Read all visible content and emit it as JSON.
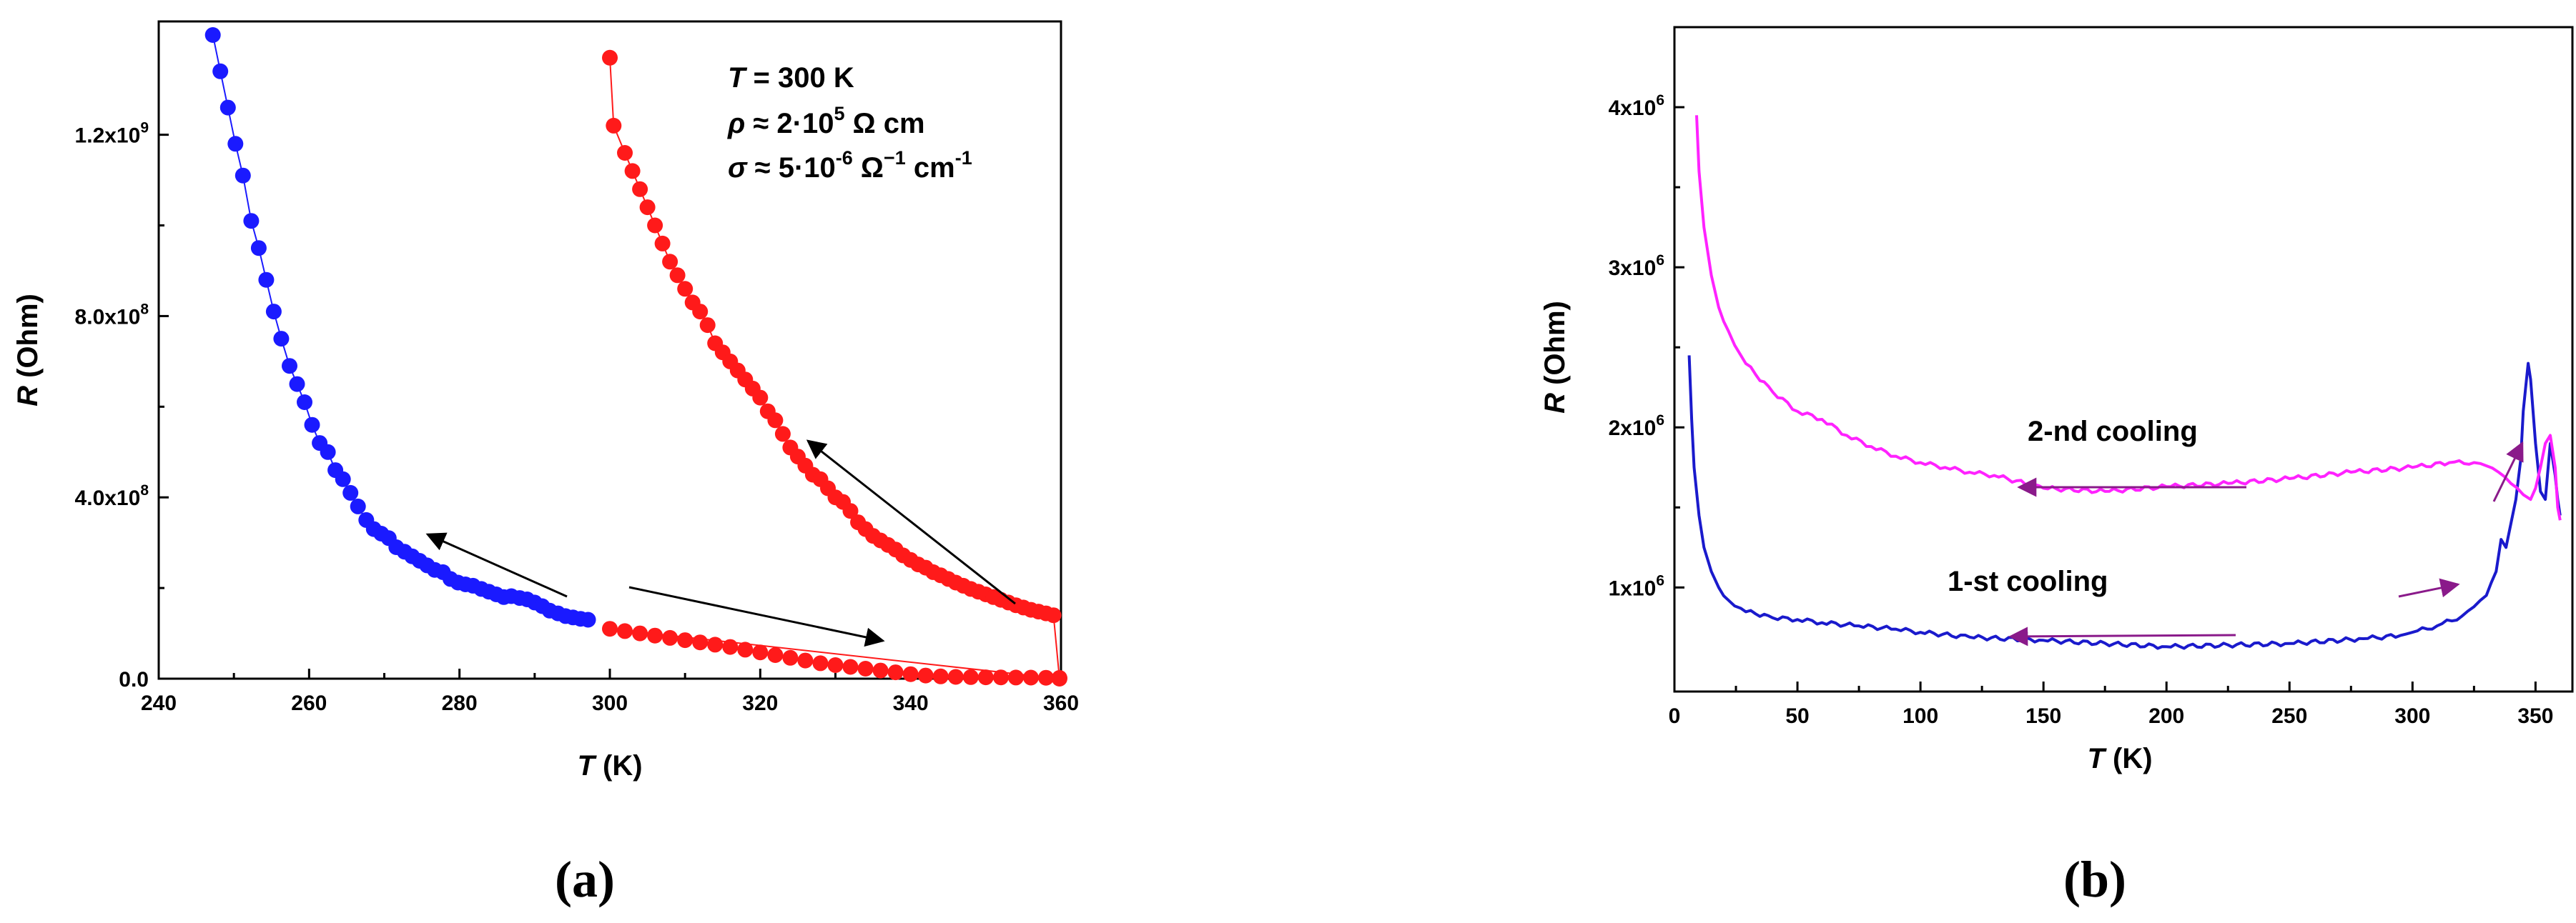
{
  "chart_data": [
    {
      "type": "scatter",
      "panel_label": "(a)",
      "xlabel": {
        "var": "T",
        "unit": " (K)"
      },
      "ylabel": {
        "var": "R",
        "unit": " (Ohm)"
      },
      "xlim": [
        240,
        360
      ],
      "ylim": [
        0,
        1450000000
      ],
      "xticks": [
        {
          "value": 240,
          "label": "240"
        },
        {
          "value": 260,
          "label": "260"
        },
        {
          "value": 280,
          "label": "280"
        },
        {
          "value": 300,
          "label": "300"
        },
        {
          "value": 320,
          "label": "320"
        },
        {
          "value": 340,
          "label": "340"
        },
        {
          "value": 360,
          "label": "360"
        }
      ],
      "yticks": [
        {
          "value": 0,
          "base": "0.0",
          "exp": ""
        },
        {
          "value": 400000000,
          "base": "4.0x10",
          "exp": "8"
        },
        {
          "value": 800000000,
          "base": "8.0x10",
          "exp": "8"
        },
        {
          "value": 1200000000,
          "base": "1.2x10",
          "exp": "9"
        }
      ],
      "annotation": {
        "line1": {
          "var": "T",
          "text": " = 300 K"
        },
        "line2": {
          "var": "ρ",
          "pre": " ≈ 2·10",
          "exp": "5",
          "post": "  Ω cm"
        },
        "line3": {
          "var": "σ",
          "pre": " ≈ 5·10",
          "exp": "-6",
          "mid": " Ω",
          "exp2": "−1",
          "post": " cm",
          "exp3": "-1"
        }
      },
      "series": [
        {
          "name": "blue",
          "color": "#1a1aff",
          "x": [
            247.2,
            248.2,
            249.2,
            250.2,
            251.2,
            252.3,
            253.3,
            254.3,
            255.3,
            256.3,
            257.4,
            258.4,
            259.4,
            260.4,
            261.4,
            262.5,
            263.5,
            264.5,
            265.5,
            266.5,
            267.6,
            268.6,
            269.6,
            270.6,
            271.6,
            272.7,
            273.7,
            274.7,
            275.7,
            276.7,
            277.8,
            278.8,
            279.8,
            280.8,
            281.8,
            282.9,
            283.9,
            284.9,
            285.9,
            286.9,
            288.0,
            289.0,
            290.0,
            291.0,
            292.0,
            293.1,
            294.1,
            295.1,
            296.1,
            297.1
          ],
          "y": [
            1420000000,
            1340000000,
            1260000000,
            1180000000,
            1110000000,
            1010000000,
            950000000,
            880000000,
            810000000,
            750000000,
            690000000,
            650000000,
            610000000,
            560000000,
            520000000,
            500000000,
            460000000,
            440000000,
            410000000,
            380000000,
            350000000,
            330000000,
            320000000,
            310000000,
            290000000,
            280000000,
            270000000,
            260000000,
            250000000,
            240000000,
            235000000,
            220000000,
            212000000,
            208000000,
            205000000,
            198000000,
            192000000,
            186000000,
            180000000,
            182000000,
            178000000,
            175000000,
            168000000,
            160000000,
            150000000,
            144000000,
            138000000,
            135000000,
            132000000,
            130000000
          ]
        },
        {
          "name": "red",
          "color": "#ff1a1a",
          "x": [
            300.0,
            300.5,
            302.0,
            303.0,
            304.0,
            305.0,
            306.0,
            307.0,
            308.0,
            309.0,
            310.0,
            311.0,
            312.0,
            313.0,
            314.0,
            315.0,
            316.0,
            317.0,
            318.0,
            319.0,
            320.0,
            321.0,
            322.0,
            323.0,
            324.0,
            325.0,
            326.0,
            327.0,
            328.0,
            329.0,
            330.0,
            331.0,
            332.0,
            333.0,
            334.0,
            335.0,
            336.0,
            337.0,
            338.0,
            339.0,
            340.0,
            341.0,
            342.0,
            343.0,
            344.0,
            345.0,
            346.0,
            347.0,
            348.0,
            349.0,
            350.0,
            351.0,
            352.0,
            353.0,
            354.0,
            355.0,
            356.0,
            357.0,
            358.0,
            359.0,
            359.8,
            300.0,
            302.0,
            304.0,
            306.0,
            308.0,
            310.0,
            312.0,
            314.0,
            316.0,
            318.0,
            320.0,
            322.0,
            324.0,
            326.0,
            328.0,
            330.0,
            332.0,
            334.0,
            336.0,
            338.0,
            340.0,
            342.0,
            344.0,
            346.0,
            348.0,
            350.0,
            352.0,
            354.0,
            356.0,
            358.0,
            359.8
          ],
          "y": [
            1370000000,
            1220000000,
            1160000000,
            1120000000,
            1080000000,
            1040000000,
            1000000000,
            960000000,
            920000000,
            890000000,
            860000000,
            830000000,
            810000000,
            780000000,
            740000000,
            720000000,
            700000000,
            680000000,
            660000000,
            640000000,
            620000000,
            590000000,
            570000000,
            540000000,
            510000000,
            490000000,
            470000000,
            450000000,
            440000000,
            420000000,
            400000000,
            390000000,
            370000000,
            345000000,
            330000000,
            315000000,
            305000000,
            295000000,
            285000000,
            272000000,
            262000000,
            252000000,
            245000000,
            235000000,
            228000000,
            220000000,
            212000000,
            205000000,
            198000000,
            192000000,
            186000000,
            180000000,
            174000000,
            168000000,
            162000000,
            157000000,
            152000000,
            148000000,
            144000000,
            140000000,
            0,
            110000000,
            105000000,
            100000000,
            95000000,
            90000000,
            85000000,
            80000000,
            75000000,
            70000000,
            64000000,
            58000000,
            52000000,
            46000000,
            40000000,
            34000000,
            30000000,
            26000000,
            22000000,
            18000000,
            14000000,
            10000000,
            7000000,
            5000000,
            4000000,
            3500000,
            3000000,
            2800000,
            2500000,
            2300000,
            2000000,
            1800000
          ]
        }
      ]
    },
    {
      "type": "line",
      "panel_label": "(b)",
      "xlabel": {
        "var": "T",
        "unit": " (K)"
      },
      "ylabel": {
        "var": "R",
        "unit": " (Ohm)"
      },
      "xlim": [
        0,
        365
      ],
      "ylim": [
        350000,
        4500000
      ],
      "xticks": [
        {
          "value": 0,
          "label": "0"
        },
        {
          "value": 50,
          "label": "50"
        },
        {
          "value": 100,
          "label": "100"
        },
        {
          "value": 150,
          "label": "150"
        },
        {
          "value": 200,
          "label": "200"
        },
        {
          "value": 250,
          "label": "250"
        },
        {
          "value": 300,
          "label": "300"
        },
        {
          "value": 350,
          "label": "350"
        }
      ],
      "yticks": [
        {
          "value": 1000000,
          "base": "1x10",
          "exp": "6"
        },
        {
          "value": 2000000,
          "base": "2x10",
          "exp": "6"
        },
        {
          "value": 3000000,
          "base": "3x10",
          "exp": "6"
        },
        {
          "value": 4000000,
          "base": "4x10",
          "exp": "6"
        }
      ],
      "series": [
        {
          "name": "1-st cooling",
          "color": "#1a1acc",
          "label": "1-st cooling",
          "x": [
            6,
            7,
            8,
            10,
            12,
            15,
            18,
            22,
            27,
            33,
            40,
            50,
            60,
            75,
            90,
            100,
            120,
            150,
            200,
            250,
            280,
            295,
            300,
            310,
            320,
            325,
            330,
            334,
            336,
            338,
            340,
            342,
            344,
            345,
            346,
            347,
            348,
            350,
            352,
            354,
            356,
            358,
            359,
            360
          ],
          "y": [
            2450000,
            2050000,
            1750000,
            1450000,
            1250000,
            1100000,
            1000000,
            920000,
            870000,
            835000,
            810000,
            800000,
            780000,
            760000,
            740000,
            720000,
            690000,
            670000,
            630000,
            650000,
            680000,
            700000,
            720000,
            760000,
            820000,
            880000,
            950000,
            1100000,
            1300000,
            1250000,
            1400000,
            1550000,
            1800000,
            2100000,
            2250000,
            2400000,
            2300000,
            1900000,
            1600000,
            1550000,
            1900000,
            1700000,
            1550000,
            1450000
          ]
        },
        {
          "name": "2-nd cooling",
          "color": "#ff22ff",
          "label": "2-nd cooling",
          "x": [
            9,
            10,
            12,
            15,
            18,
            22,
            27,
            33,
            40,
            50,
            60,
            70,
            80,
            90,
            100,
            110,
            120,
            130,
            150,
            175,
            200,
            225,
            250,
            275,
            300,
            315,
            325,
            330,
            335,
            340,
            345,
            348,
            350,
            352,
            354,
            356,
            358,
            359,
            360
          ],
          "y": [
            3950000,
            3600000,
            3250000,
            2950000,
            2750000,
            2600000,
            2450000,
            2330000,
            2220000,
            2100000,
            2050000,
            1950000,
            1880000,
            1820000,
            1780000,
            1750000,
            1720000,
            1700000,
            1620000,
            1600000,
            1630000,
            1650000,
            1680000,
            1720000,
            1750000,
            1780000,
            1780000,
            1760000,
            1720000,
            1650000,
            1580000,
            1550000,
            1620000,
            1750000,
            1900000,
            1950000,
            1750000,
            1500000,
            1420000
          ]
        }
      ]
    }
  ],
  "arrows_colors": {
    "black": "#000000",
    "purple": "#8a1a8a"
  }
}
